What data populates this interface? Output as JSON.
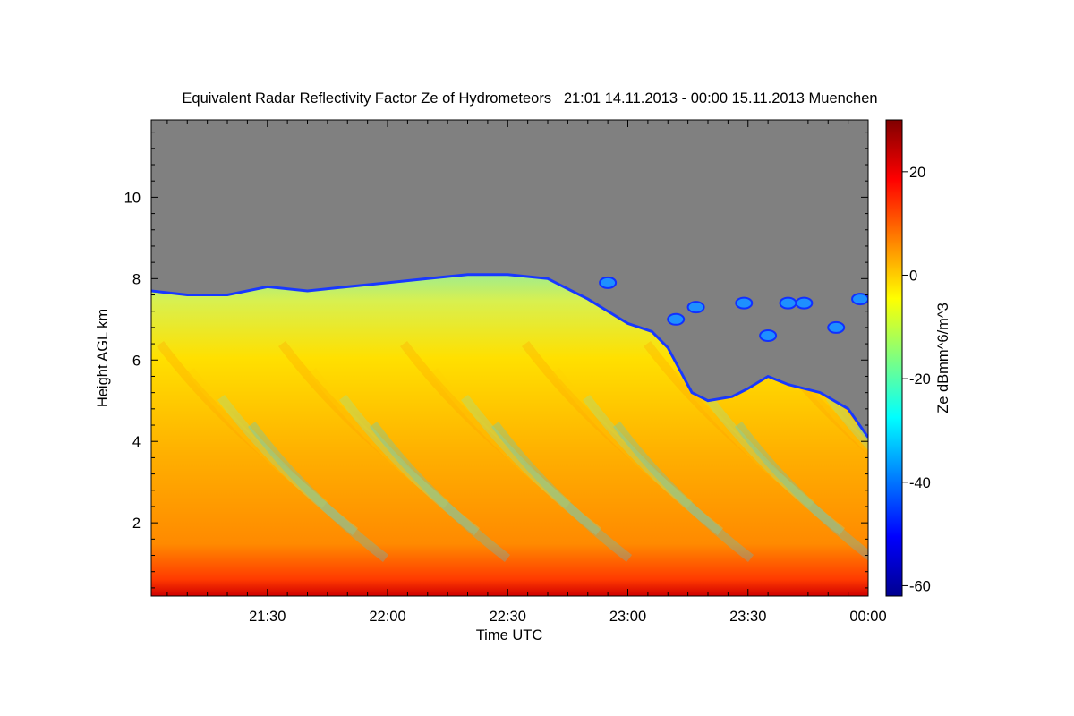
{
  "chart_data": {
    "type": "heatmap",
    "title": "Equivalent Radar Reflectivity Factor Ze of Hydrometeors   21:01 14.11.2013 - 00:00 15.11.2013 Muenchen",
    "xlabel": "Time UTC",
    "ylabel": "Height AGL km",
    "x_ticks": [
      "21:30",
      "22:00",
      "22:30",
      "23:00",
      "23:30",
      "00:00"
    ],
    "x_tick_minutes": [
      30,
      60,
      90,
      120,
      150,
      180
    ],
    "xlim_minutes": [
      1,
      180
    ],
    "y_ticks": [
      "2",
      "4",
      "6",
      "8",
      "10"
    ],
    "y_tick_values": [
      2,
      4,
      6,
      8,
      10
    ],
    "ylim": [
      0.2,
      11.9
    ],
    "colorbar": {
      "label": "Ze dBmm^6/m^3",
      "ticks": [
        "20",
        "0",
        "-20",
        "-40",
        "-60"
      ],
      "tick_values": [
        20,
        0,
        -20,
        -40,
        -60
      ],
      "range": [
        -62,
        30
      ]
    },
    "no_signal_color": "#808080",
    "cloud_top_km": [
      [
        1,
        7.7
      ],
      [
        10,
        7.6
      ],
      [
        20,
        7.6
      ],
      [
        30,
        7.8
      ],
      [
        40,
        7.7
      ],
      [
        50,
        7.8
      ],
      [
        60,
        7.9
      ],
      [
        70,
        8.0
      ],
      [
        80,
        8.1
      ],
      [
        90,
        8.1
      ],
      [
        100,
        8.0
      ],
      [
        110,
        7.5
      ],
      [
        120,
        6.9
      ],
      [
        126,
        6.7
      ],
      [
        130,
        6.3
      ],
      [
        136,
        5.2
      ],
      [
        140,
        5.0
      ],
      [
        146,
        5.1
      ],
      [
        150,
        5.3
      ],
      [
        155,
        5.6
      ],
      [
        160,
        5.4
      ],
      [
        168,
        5.2
      ],
      [
        175,
        4.8
      ],
      [
        180,
        4.1
      ]
    ],
    "isolated_echoes": [
      {
        "t": 132,
        "h": 7.0
      },
      {
        "t": 137,
        "h": 7.3
      },
      {
        "t": 149,
        "h": 7.4
      },
      {
        "t": 155,
        "h": 6.6
      },
      {
        "t": 160,
        "h": 7.4
      },
      {
        "t": 164,
        "h": 7.4
      },
      {
        "t": 172,
        "h": 6.8
      },
      {
        "t": 178,
        "h": 7.5
      },
      {
        "t": 115,
        "h": 7.9
      }
    ]
  }
}
